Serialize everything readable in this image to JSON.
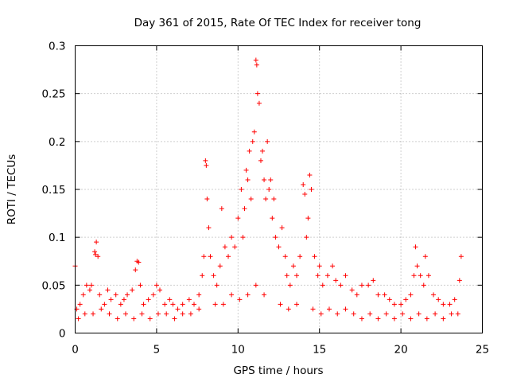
{
  "chart_data": {
    "type": "scatter",
    "title": "Day 361 of 2015, Rate Of TEC Index for receiver tong",
    "xlabel": "GPS time / hours",
    "ylabel": "ROTI / TECUs",
    "xlim": [
      0,
      25
    ],
    "ylim": [
      0,
      0.3
    ],
    "xticks": [
      0,
      5,
      10,
      15,
      20,
      25
    ],
    "xtick_labels": [
      "0",
      "5",
      "10",
      "15",
      "20",
      "25"
    ],
    "yticks": [
      0,
      0.05,
      0.1,
      0.15,
      0.2,
      0.25,
      0.3
    ],
    "ytick_labels": [
      "0",
      "0.05",
      "0.1",
      "0.15",
      "0.2",
      "0.25",
      "0.3"
    ],
    "grid": true,
    "marker": "+",
    "color": "#ff0000",
    "series": [
      {
        "name": "ROTI",
        "x": [
          0.0,
          0.1,
          0.3,
          0.5,
          0.7,
          0.9,
          1.0,
          1.2,
          1.25,
          1.3,
          1.4,
          1.5,
          1.8,
          2.0,
          2.2,
          2.5,
          2.8,
          3.0,
          3.2,
          3.5,
          3.7,
          3.8,
          3.9,
          4.0,
          4.2,
          4.5,
          4.8,
          5.0,
          5.2,
          5.5,
          5.8,
          6.0,
          6.3,
          6.6,
          7.0,
          7.3,
          7.6,
          7.8,
          7.9,
          8.0,
          8.05,
          8.1,
          8.2,
          8.3,
          8.5,
          8.7,
          8.9,
          9.0,
          9.2,
          9.4,
          9.6,
          9.8,
          10.0,
          10.2,
          10.3,
          10.4,
          10.5,
          10.6,
          10.7,
          10.8,
          10.9,
          11.0,
          11.1,
          11.15,
          11.2,
          11.3,
          11.4,
          11.5,
          11.6,
          11.7,
          11.8,
          11.9,
          12.0,
          12.1,
          12.2,
          12.3,
          12.5,
          12.7,
          12.9,
          13.0,
          13.2,
          13.4,
          13.6,
          13.8,
          14.0,
          14.1,
          14.2,
          14.3,
          14.4,
          14.5,
          14.7,
          14.9,
          15.0,
          15.2,
          15.5,
          15.8,
          16.0,
          16.3,
          16.6,
          17.0,
          17.3,
          17.6,
          18.0,
          18.3,
          18.6,
          19.0,
          19.3,
          19.6,
          20.0,
          20.3,
          20.6,
          20.8,
          20.9,
          21.0,
          21.2,
          21.4,
          21.5,
          21.7,
          22.0,
          22.3,
          22.6,
          23.0,
          23.3,
          23.6,
          23.7,
          0.2,
          0.6,
          1.1,
          1.6,
          2.1,
          2.6,
          3.1,
          3.6,
          4.1,
          4.6,
          5.1,
          5.6,
          6.1,
          6.6,
          7.1,
          7.6,
          8.6,
          9.1,
          9.6,
          10.1,
          10.6,
          11.1,
          11.6,
          12.6,
          13.1,
          13.6,
          14.6,
          15.1,
          15.6,
          16.1,
          16.6,
          17.1,
          17.6,
          18.1,
          18.6,
          19.1,
          19.6,
          20.1,
          20.6,
          21.1,
          21.6,
          22.1,
          22.6,
          23.1,
          23.5
        ],
        "y": [
          0.07,
          0.025,
          0.03,
          0.04,
          0.05,
          0.045,
          0.05,
          0.085,
          0.082,
          0.095,
          0.08,
          0.04,
          0.03,
          0.045,
          0.035,
          0.04,
          0.03,
          0.035,
          0.04,
          0.045,
          0.066,
          0.075,
          0.074,
          0.05,
          0.03,
          0.035,
          0.04,
          0.05,
          0.045,
          0.03,
          0.035,
          0.03,
          0.025,
          0.03,
          0.035,
          0.03,
          0.04,
          0.06,
          0.08,
          0.18,
          0.175,
          0.14,
          0.11,
          0.08,
          0.06,
          0.05,
          0.07,
          0.13,
          0.09,
          0.08,
          0.1,
          0.09,
          0.12,
          0.15,
          0.1,
          0.13,
          0.17,
          0.16,
          0.19,
          0.14,
          0.2,
          0.21,
          0.285,
          0.28,
          0.25,
          0.24,
          0.18,
          0.19,
          0.16,
          0.14,
          0.2,
          0.15,
          0.16,
          0.12,
          0.14,
          0.1,
          0.09,
          0.11,
          0.08,
          0.06,
          0.05,
          0.07,
          0.06,
          0.08,
          0.155,
          0.145,
          0.1,
          0.12,
          0.165,
          0.15,
          0.08,
          0.06,
          0.07,
          0.05,
          0.06,
          0.07,
          0.055,
          0.05,
          0.06,
          0.045,
          0.04,
          0.05,
          0.05,
          0.055,
          0.04,
          0.04,
          0.035,
          0.03,
          0.03,
          0.035,
          0.04,
          0.06,
          0.09,
          0.07,
          0.06,
          0.05,
          0.08,
          0.06,
          0.04,
          0.035,
          0.03,
          0.03,
          0.035,
          0.055,
          0.08,
          0.015,
          0.02,
          0.02,
          0.025,
          0.02,
          0.015,
          0.02,
          0.015,
          0.02,
          0.015,
          0.02,
          0.02,
          0.015,
          0.02,
          0.02,
          0.025,
          0.03,
          0.03,
          0.04,
          0.035,
          0.04,
          0.05,
          0.04,
          0.03,
          0.025,
          0.03,
          0.025,
          0.02,
          0.025,
          0.02,
          0.025,
          0.02,
          0.015,
          0.02,
          0.015,
          0.02,
          0.015,
          0.02,
          0.015,
          0.02,
          0.015,
          0.02,
          0.015,
          0.02,
          0.02
        ]
      }
    ]
  }
}
